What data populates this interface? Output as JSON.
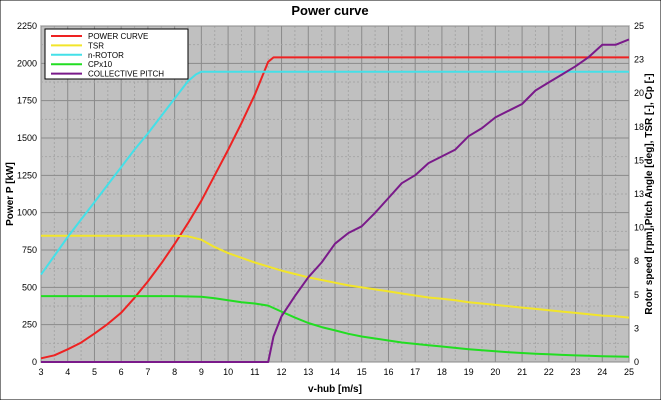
{
  "chart_data": {
    "type": "line",
    "title": "Power curve",
    "xlabel": "v-hub [m/s]",
    "ylabel_left": "Power P [kW]",
    "ylabel_right": "Rotor speed [rpm],Pitch Angle [deg], TSR [-], Cp [-]",
    "xlim": [
      3,
      25
    ],
    "ylim_left": [
      0,
      2250
    ],
    "ylim_right": [
      0,
      25
    ],
    "grid": true,
    "legend_position": "top-left",
    "x_ticks": [
      "3",
      "4",
      "5",
      "6",
      "7",
      "8",
      "9",
      "10",
      "11",
      "12",
      "13",
      "14",
      "15",
      "16",
      "17",
      "18",
      "19",
      "20",
      "21",
      "22",
      "23",
      "24",
      "25"
    ],
    "y_left_ticks": [
      "0",
      "250",
      "500",
      "750",
      "1000",
      "1250",
      "1500",
      "1750",
      "2000",
      "2250"
    ],
    "y_right_ticks": [
      {
        "v": 0,
        "label": "0"
      },
      {
        "v": 2.5,
        "label": "3"
      },
      {
        "v": 5,
        "label": "5"
      },
      {
        "v": 7.5,
        "label": "8"
      },
      {
        "v": 10,
        "label": "10"
      },
      {
        "v": 12.5,
        "label": "13"
      },
      {
        "v": 15,
        "label": "15"
      },
      {
        "v": 17.5,
        "label": "18"
      },
      {
        "v": 20,
        "label": "20"
      },
      {
        "v": 22.5,
        "label": "23"
      },
      {
        "v": 25,
        "label": "25"
      }
    ],
    "series": [
      {
        "name": "POWER CURVE",
        "color": "#ee2222",
        "axis": "left",
        "points": [
          [
            3,
            25
          ],
          [
            3.5,
            45
          ],
          [
            4,
            85
          ],
          [
            4.5,
            130
          ],
          [
            5,
            190
          ],
          [
            5.5,
            255
          ],
          [
            6,
            330
          ],
          [
            6.5,
            430
          ],
          [
            7,
            540
          ],
          [
            7.5,
            660
          ],
          [
            8,
            790
          ],
          [
            8.5,
            930
          ],
          [
            9,
            1080
          ],
          [
            9.5,
            1250
          ],
          [
            10,
            1420
          ],
          [
            10.5,
            1600
          ],
          [
            11,
            1790
          ],
          [
            11.5,
            2010
          ],
          [
            11.7,
            2040
          ],
          [
            12,
            2040
          ],
          [
            13,
            2040
          ],
          [
            14,
            2040
          ],
          [
            15,
            2040
          ],
          [
            16,
            2040
          ],
          [
            17,
            2040
          ],
          [
            18,
            2040
          ],
          [
            19,
            2040
          ],
          [
            20,
            2040
          ],
          [
            21,
            2040
          ],
          [
            22,
            2040
          ],
          [
            23,
            2040
          ],
          [
            24,
            2040
          ],
          [
            25,
            2040
          ]
        ]
      },
      {
        "name": "TSR",
        "color": "#f2e52a",
        "axis": "right",
        "points": [
          [
            3,
            9.4
          ],
          [
            4,
            9.4
          ],
          [
            5,
            9.4
          ],
          [
            6,
            9.4
          ],
          [
            7,
            9.4
          ],
          [
            8,
            9.4
          ],
          [
            8.5,
            9.35
          ],
          [
            9,
            9.1
          ],
          [
            9.5,
            8.55
          ],
          [
            10,
            8.1
          ],
          [
            10.5,
            7.75
          ],
          [
            11,
            7.4
          ],
          [
            11.5,
            7.1
          ],
          [
            12,
            6.8
          ],
          [
            12.5,
            6.55
          ],
          [
            13,
            6.3
          ],
          [
            13.5,
            6.1
          ],
          [
            14,
            5.9
          ],
          [
            14.5,
            5.7
          ],
          [
            15,
            5.55
          ],
          [
            15.5,
            5.4
          ],
          [
            16,
            5.25
          ],
          [
            16.5,
            5.1
          ],
          [
            17,
            4.95
          ],
          [
            17.5,
            4.8
          ],
          [
            18,
            4.7
          ],
          [
            18.5,
            4.6
          ],
          [
            19,
            4.45
          ],
          [
            19.5,
            4.35
          ],
          [
            20,
            4.25
          ],
          [
            20.5,
            4.15
          ],
          [
            21,
            4.05
          ],
          [
            21.5,
            3.95
          ],
          [
            22,
            3.85
          ],
          [
            22.5,
            3.75
          ],
          [
            23,
            3.65
          ],
          [
            23.5,
            3.55
          ],
          [
            24,
            3.45
          ],
          [
            24.5,
            3.4
          ],
          [
            25,
            3.3
          ]
        ]
      },
      {
        "name": "n-ROTOR",
        "color": "#44e0e8",
        "axis": "right",
        "points": [
          [
            3,
            6.5
          ],
          [
            3.5,
            7.9
          ],
          [
            4,
            9.3
          ],
          [
            4.5,
            10.6
          ],
          [
            5,
            11.9
          ],
          [
            5.5,
            13.2
          ],
          [
            6,
            14.5
          ],
          [
            6.5,
            15.8
          ],
          [
            7,
            17.0
          ],
          [
            7.5,
            18.3
          ],
          [
            8,
            19.6
          ],
          [
            8.5,
            20.9
          ],
          [
            8.8,
            21.4
          ],
          [
            9,
            21.6
          ],
          [
            10,
            21.6
          ],
          [
            11,
            21.6
          ],
          [
            12,
            21.6
          ],
          [
            13,
            21.6
          ],
          [
            14,
            21.6
          ],
          [
            15,
            21.6
          ],
          [
            16,
            21.6
          ],
          [
            17,
            21.6
          ],
          [
            18,
            21.6
          ],
          [
            19,
            21.6
          ],
          [
            20,
            21.6
          ],
          [
            21,
            21.6
          ],
          [
            22,
            21.6
          ],
          [
            23,
            21.6
          ],
          [
            24,
            21.6
          ],
          [
            25,
            21.6
          ]
        ]
      },
      {
        "name": "CPx10",
        "color": "#22dd22",
        "axis": "right",
        "points": [
          [
            3,
            4.9
          ],
          [
            4,
            4.9
          ],
          [
            5,
            4.9
          ],
          [
            6,
            4.9
          ],
          [
            7,
            4.9
          ],
          [
            8,
            4.9
          ],
          [
            9,
            4.85
          ],
          [
            9.5,
            4.75
          ],
          [
            10,
            4.6
          ],
          [
            10.5,
            4.45
          ],
          [
            11,
            4.35
          ],
          [
            11.5,
            4.2
          ],
          [
            12,
            3.75
          ],
          [
            12.5,
            3.3
          ],
          [
            13,
            2.9
          ],
          [
            13.5,
            2.6
          ],
          [
            14,
            2.35
          ],
          [
            14.5,
            2.1
          ],
          [
            15,
            1.9
          ],
          [
            15.5,
            1.75
          ],
          [
            16,
            1.6
          ],
          [
            16.5,
            1.45
          ],
          [
            17,
            1.35
          ],
          [
            17.5,
            1.25
          ],
          [
            18,
            1.15
          ],
          [
            18.5,
            1.05
          ],
          [
            19,
            0.95
          ],
          [
            19.5,
            0.87
          ],
          [
            20,
            0.8
          ],
          [
            20.5,
            0.73
          ],
          [
            21,
            0.67
          ],
          [
            21.5,
            0.62
          ],
          [
            22,
            0.57
          ],
          [
            22.5,
            0.53
          ],
          [
            23,
            0.49
          ],
          [
            23.5,
            0.46
          ],
          [
            24,
            0.43
          ],
          [
            24.5,
            0.41
          ],
          [
            25,
            0.39
          ]
        ]
      },
      {
        "name": "COLLECTIVE PITCH",
        "color": "#7a1a8a",
        "axis": "right",
        "points": [
          [
            3,
            0
          ],
          [
            4,
            0
          ],
          [
            5,
            0
          ],
          [
            6,
            0
          ],
          [
            7,
            0
          ],
          [
            8,
            0
          ],
          [
            9,
            0
          ],
          [
            10,
            0
          ],
          [
            11,
            0
          ],
          [
            11.5,
            0
          ],
          [
            11.7,
            1.9
          ],
          [
            12,
            3.4
          ],
          [
            12.5,
            4.9
          ],
          [
            13,
            6.3
          ],
          [
            13.5,
            7.4
          ],
          [
            14,
            8.8
          ],
          [
            14.5,
            9.6
          ],
          [
            15,
            10.1
          ],
          [
            15.5,
            11.1
          ],
          [
            16,
            12.2
          ],
          [
            16.5,
            13.3
          ],
          [
            17,
            13.9
          ],
          [
            17.5,
            14.8
          ],
          [
            18,
            15.3
          ],
          [
            18.5,
            15.8
          ],
          [
            19,
            16.8
          ],
          [
            19.5,
            17.4
          ],
          [
            20,
            18.2
          ],
          [
            20.5,
            18.7
          ],
          [
            21,
            19.2
          ],
          [
            21.5,
            20.2
          ],
          [
            22,
            20.8
          ],
          [
            22.5,
            21.4
          ],
          [
            23,
            22.0
          ],
          [
            23.5,
            22.7
          ],
          [
            24,
            23.6
          ],
          [
            24.5,
            23.6
          ],
          [
            25,
            24.0
          ]
        ]
      }
    ]
  }
}
